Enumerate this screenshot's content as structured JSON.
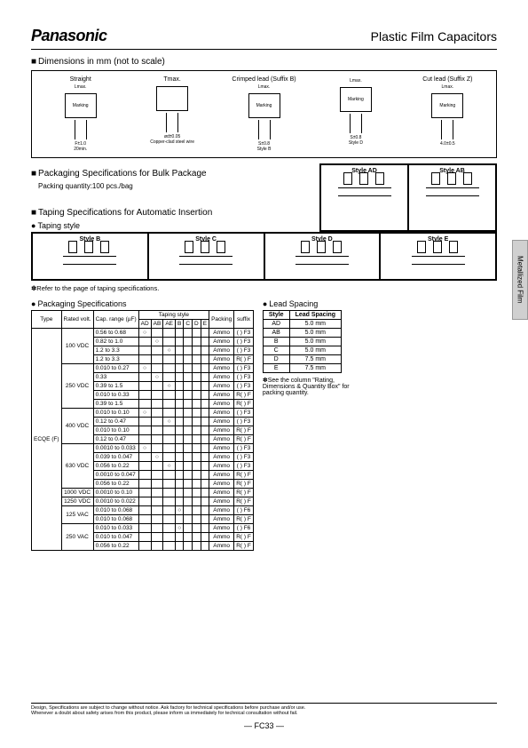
{
  "header": {
    "brand": "Panasonic",
    "title": "Plastic Film Capacitors"
  },
  "dimensions": {
    "heading": "Dimensions in mm (not to scale)",
    "items": [
      {
        "label": "Straight",
        "sub": "Lmax.",
        "marking": "Marking",
        "extra": "F±1.0",
        "bottom": "20min."
      },
      {
        "label": "Tmax.",
        "sub": "",
        "marking": "",
        "extra": "ød±0.05",
        "bottom": "Copper-clad steel wire"
      },
      {
        "label": "Crimped lead (Suffix B)",
        "sub": "Lmax.",
        "marking": "Marking",
        "extra": "S±0.8",
        "bottom": "Style B"
      },
      {
        "label": "",
        "sub": "Lmax.",
        "marking": "Marking",
        "extra": "S±0.8",
        "bottom": "Style D"
      },
      {
        "label": "Cut lead (Suffix Z)",
        "sub": "Lmax.",
        "marking": "Marking",
        "extra": "4.0±0.5",
        "bottom": ""
      }
    ]
  },
  "packaging": {
    "bulk_heading": "Packaging Specifications for Bulk Package",
    "bulk_qty": "Packing quantity:100 pcs./bag",
    "taping_heading": "Taping Specifications for Automatic Insertion",
    "style_sub": "Taping style",
    "top_styles": [
      "Style AD",
      "Style AB"
    ],
    "bottom_styles": [
      "Style B",
      "Style C",
      "Style D",
      "Style E"
    ],
    "ref_note": "Refer to the page of taping specifications."
  },
  "pack_spec": {
    "heading": "Packaging Specifications",
    "cols_main": [
      "Type",
      "Rated volt.",
      "Cap. range (µF)"
    ],
    "taping_header": "Taping style",
    "taping_cols": [
      "AD",
      "AB",
      "AE",
      "B",
      "C",
      "D",
      "E"
    ],
    "packing_col": "Packing",
    "suffix_col": "suffix",
    "type": "ECQE (F)",
    "rows": [
      {
        "volt": "100 VDC",
        "cap": "0.56 to 0.68",
        "t": [
          "○",
          "",
          "",
          "",
          "",
          "",
          ""
        ],
        "pack": "Ammo",
        "sfx": "(   ) F3"
      },
      {
        "volt": "",
        "cap": "0.82 to 1.0",
        "t": [
          "",
          "○",
          "",
          "",
          "",
          "",
          ""
        ],
        "pack": "Ammo",
        "sfx": "(   ) F3"
      },
      {
        "volt": "",
        "cap": "1.2 to 3.3",
        "t": [
          "",
          "",
          "○",
          "",
          "",
          "",
          ""
        ],
        "pack": "Ammo",
        "sfx": "(   ) F3"
      },
      {
        "volt": "",
        "cap": "1.2 to 3.3",
        "t": [
          "",
          "",
          "",
          "",
          "",
          "",
          ""
        ],
        "pack": "Ammo",
        "sfx": "R(   ) F"
      },
      {
        "volt": "250 VDC",
        "cap": "0.010 to 0.27",
        "t": [
          "○",
          "",
          "",
          "",
          "",
          "",
          ""
        ],
        "pack": "Ammo",
        "sfx": "(   ) F3"
      },
      {
        "volt": "",
        "cap": "0.33",
        "t": [
          "",
          "○",
          "",
          "",
          "",
          "",
          ""
        ],
        "pack": "Ammo",
        "sfx": "(   ) F3"
      },
      {
        "volt": "",
        "cap": "0.39 to 1.5",
        "t": [
          "",
          "",
          "○",
          "",
          "",
          "",
          ""
        ],
        "pack": "Ammo",
        "sfx": "(   ) F3"
      },
      {
        "volt": "",
        "cap": "0.010 to 0.33",
        "t": [
          "",
          "",
          "",
          "",
          "",
          "",
          ""
        ],
        "pack": "Ammo",
        "sfx": "R(   ) F"
      },
      {
        "volt": "",
        "cap": "0.39 to 1.5",
        "t": [
          "",
          "",
          "",
          "",
          "",
          "",
          ""
        ],
        "pack": "Ammo",
        "sfx": "R(   ) F"
      },
      {
        "volt": "400 VDC",
        "cap": "0.010 to 0.10",
        "t": [
          "○",
          "",
          "",
          "",
          "",
          "",
          ""
        ],
        "pack": "Ammo",
        "sfx": "(   ) F3"
      },
      {
        "volt": "",
        "cap": "0.12 to 0.47",
        "t": [
          "",
          "",
          "○",
          "",
          "",
          "",
          ""
        ],
        "pack": "Ammo",
        "sfx": "(   ) F3"
      },
      {
        "volt": "",
        "cap": "0.010 to 0.10",
        "t": [
          "",
          "",
          "",
          "",
          "",
          "",
          ""
        ],
        "pack": "Ammo",
        "sfx": "R(   ) F"
      },
      {
        "volt": "",
        "cap": "0.12 to 0.47",
        "t": [
          "",
          "",
          "",
          "",
          "",
          "",
          ""
        ],
        "pack": "Ammo",
        "sfx": "R(   ) F"
      },
      {
        "volt": "630 VDC",
        "cap": "0.0010 to 0.033",
        "t": [
          "○",
          "",
          "",
          "",
          "",
          "",
          ""
        ],
        "pack": "Ammo",
        "sfx": "(   ) F3"
      },
      {
        "volt": "",
        "cap": "0.039 to 0.047",
        "t": [
          "",
          "○",
          "",
          "",
          "",
          "",
          ""
        ],
        "pack": "Ammo",
        "sfx": "(   ) F3"
      },
      {
        "volt": "",
        "cap": "0.056 to 0.22",
        "t": [
          "",
          "",
          "○",
          "",
          "",
          "",
          ""
        ],
        "pack": "Ammo",
        "sfx": "(   ) F3"
      },
      {
        "volt": "",
        "cap": "0.0010 to 0.047",
        "t": [
          "",
          "",
          "",
          "",
          "",
          "",
          ""
        ],
        "pack": "Ammo",
        "sfx": "R(   ) F"
      },
      {
        "volt": "",
        "cap": "0.056 to 0.22",
        "t": [
          "",
          "",
          "",
          "",
          "",
          "",
          ""
        ],
        "pack": "Ammo",
        "sfx": "R(   ) F"
      },
      {
        "volt": "1000 VDC",
        "cap": "0.0010 to 0.10",
        "t": [
          "",
          "",
          "",
          "",
          "",
          "",
          ""
        ],
        "pack": "Ammo",
        "sfx": "R(   ) F"
      },
      {
        "volt": "1250 VDC",
        "cap": "0.0010 to 0.022",
        "t": [
          "",
          "",
          "",
          "",
          "",
          "",
          ""
        ],
        "pack": "Ammo",
        "sfx": "R(   ) F"
      },
      {
        "volt": "125 VAC",
        "cap": "0.010 to 0.068",
        "t": [
          "",
          "",
          "",
          "○",
          "",
          "",
          ""
        ],
        "pack": "Ammo",
        "sfx": "(   ) F6"
      },
      {
        "volt": "",
        "cap": "0.010 to 0.068",
        "t": [
          "",
          "",
          "",
          "",
          "",
          "",
          ""
        ],
        "pack": "Ammo",
        "sfx": "R(   ) F"
      },
      {
        "volt": "250 VAC",
        "cap": "0.010 to 0.033",
        "t": [
          "",
          "",
          "",
          "○",
          "",
          "",
          ""
        ],
        "pack": "Ammo",
        "sfx": "(   ) F6"
      },
      {
        "volt": "",
        "cap": "0.010 to 0.047",
        "t": [
          "",
          "",
          "",
          "",
          "",
          "",
          ""
        ],
        "pack": "Ammo",
        "sfx": "R(   ) F"
      },
      {
        "volt": "",
        "cap": "0.056 to 0.22",
        "t": [
          "",
          "",
          "",
          "",
          "",
          "",
          ""
        ],
        "pack": "Ammo",
        "sfx": "R(   ) F"
      }
    ]
  },
  "lead_spacing": {
    "heading": "Lead Spacing",
    "cols": [
      "Style",
      "Lead Spacing"
    ],
    "rows": [
      [
        "AD",
        "5.0 mm"
      ],
      [
        "AB",
        "5.0 mm"
      ],
      [
        "B",
        "5.0 mm"
      ],
      [
        "C",
        "5.0 mm"
      ],
      [
        "D",
        "7.5 mm"
      ],
      [
        "E",
        "7.5 mm"
      ]
    ],
    "note": "See the column \"Rating, Dimensions & Quantity Box\" for packing quantity."
  },
  "side_tab": "Metallized Film",
  "footer": {
    "line1": "Design, Specifications are subject to change without notice.     Ask factory for technical specifications before purchase and/or use.",
    "line2": "Whenever a doubt about safety arises from this product, please inform us immediately for technical consultation without fail.",
    "page": "— FC33 —"
  }
}
